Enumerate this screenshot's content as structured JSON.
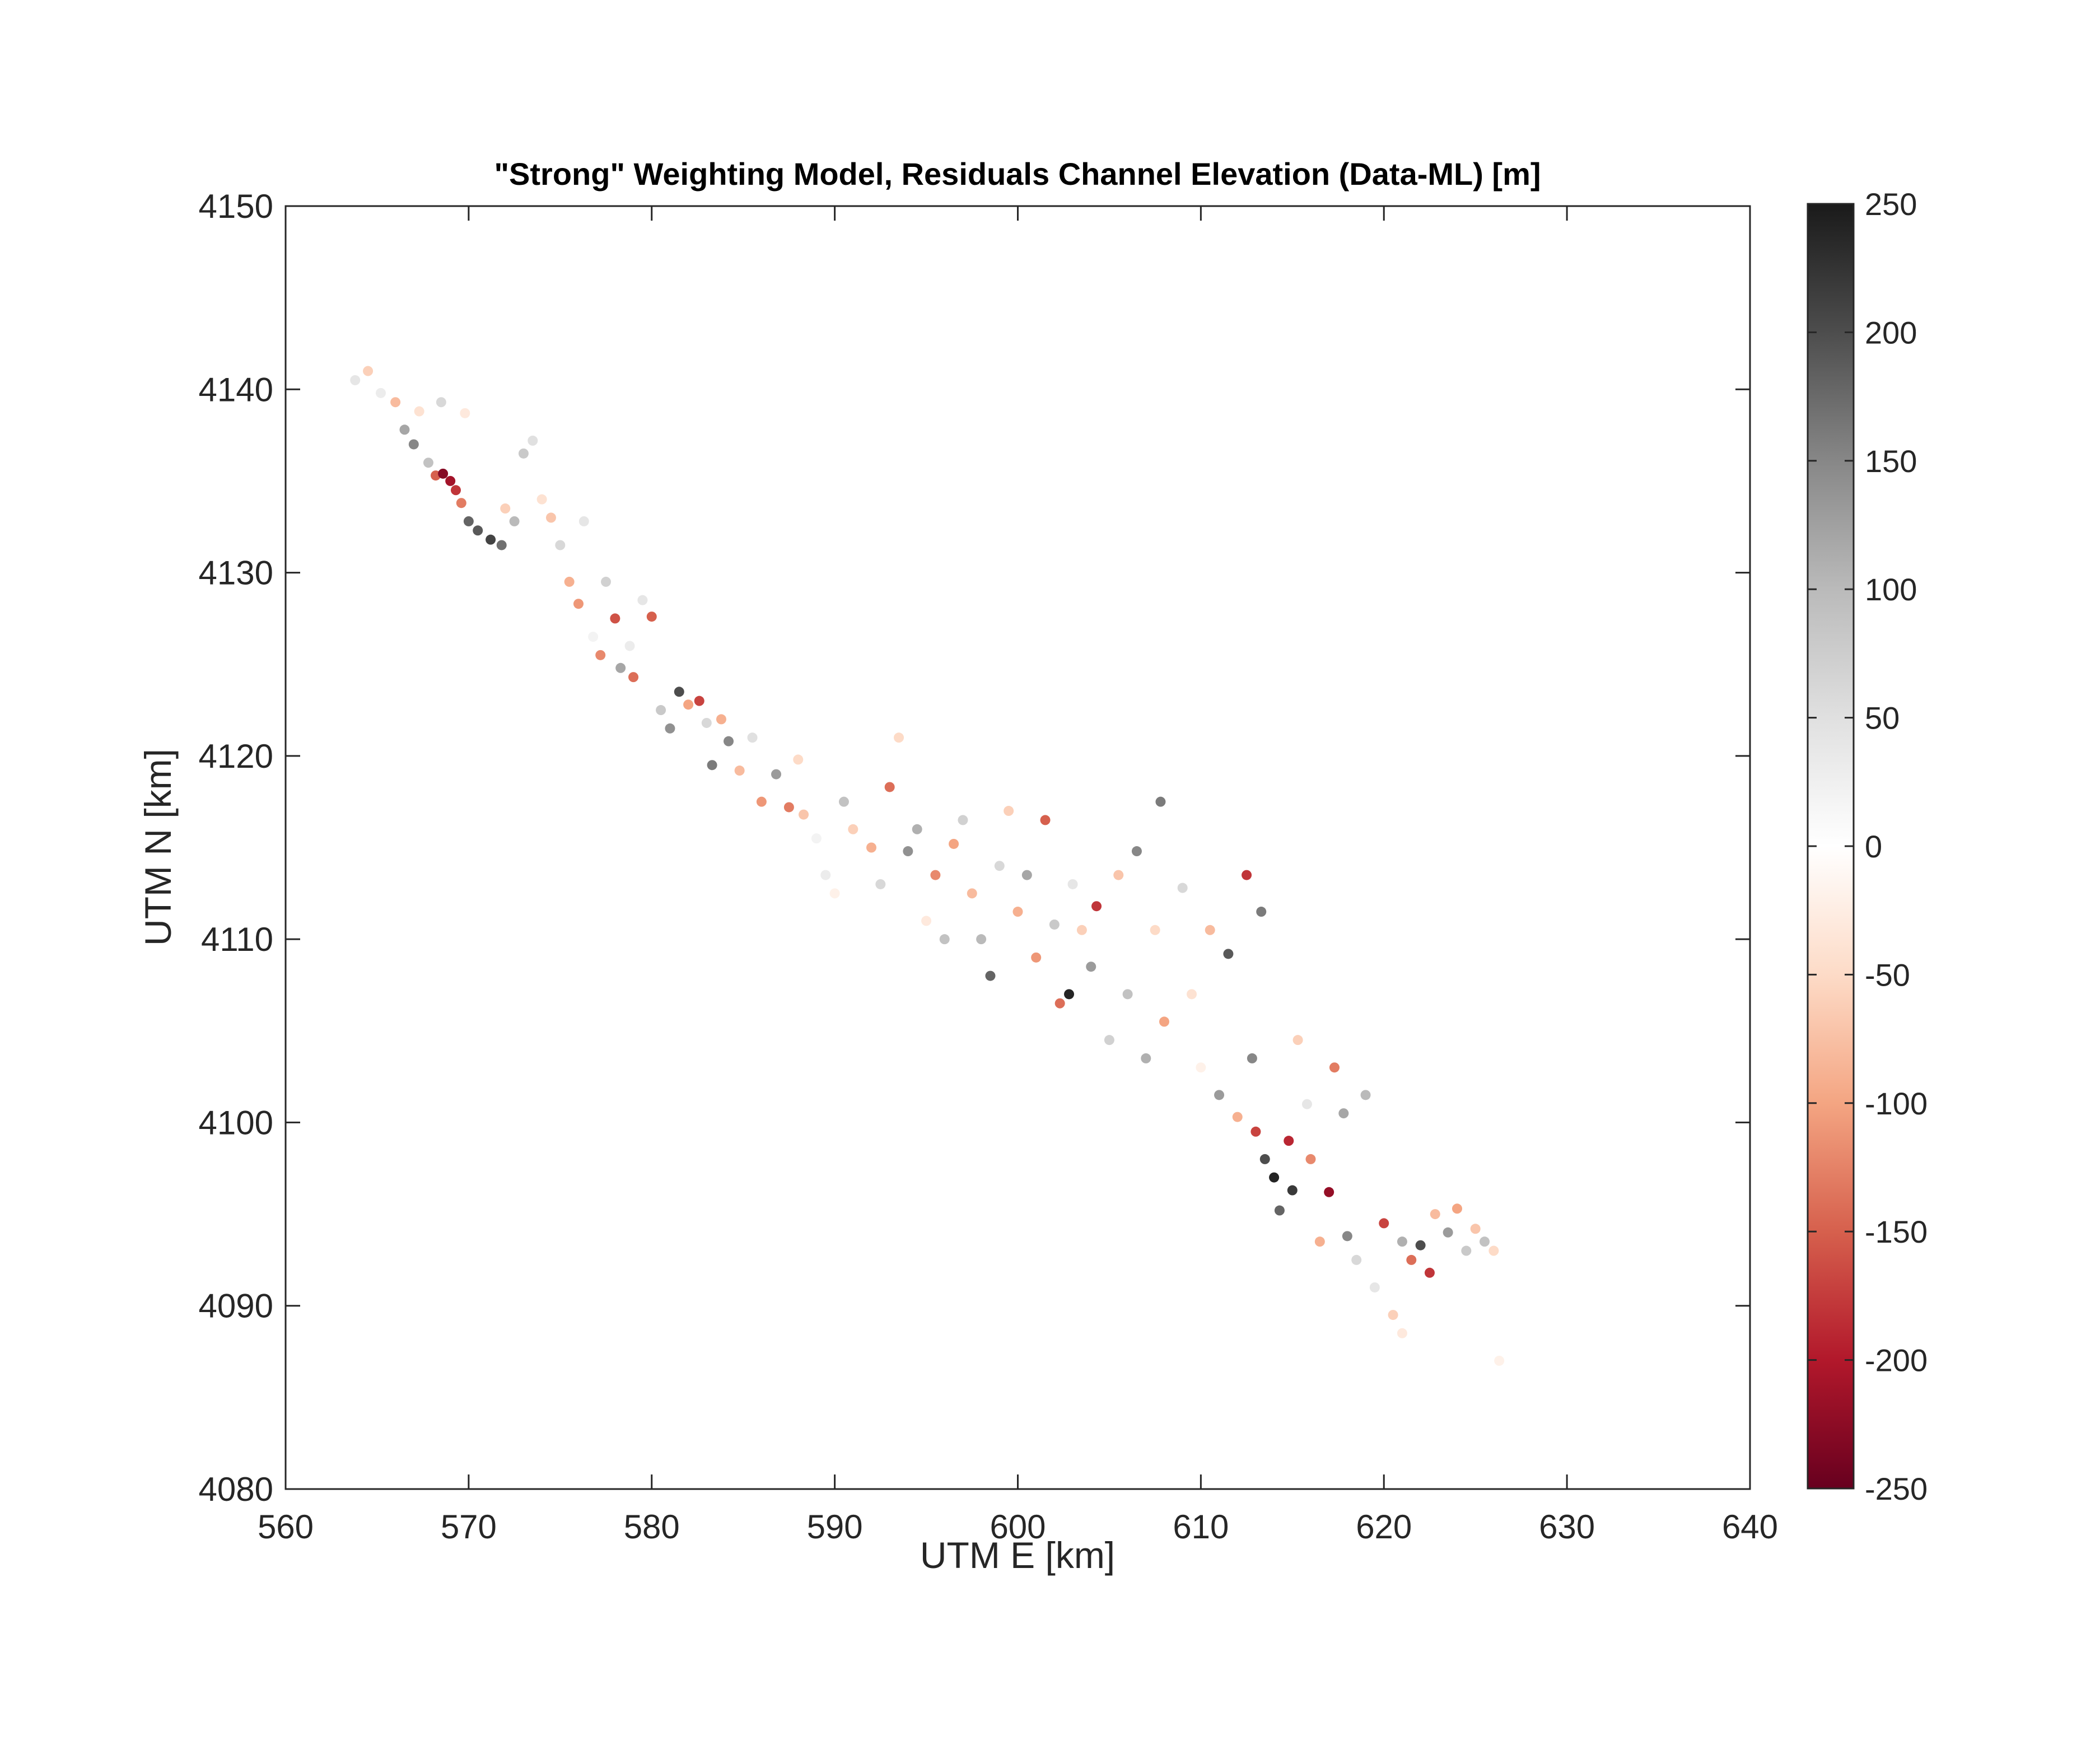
{
  "chart_data": {
    "type": "scatter",
    "title": "\"Strong\" Weighting Model, Residuals Channel Elevation (Data-ML) [m]",
    "xlabel": "UTM E [km]",
    "ylabel": "UTM N [km]",
    "xlim": [
      560,
      640
    ],
    "ylim": [
      4080,
      4150
    ],
    "xticks": [
      560,
      570,
      580,
      590,
      600,
      610,
      620,
      630,
      640
    ],
    "yticks": [
      4080,
      4090,
      4100,
      4110,
      4120,
      4130,
      4140,
      4150
    ],
    "grid": false,
    "colorbar": {
      "label": "",
      "clim": [
        -250,
        250
      ],
      "ticks": [
        250,
        200,
        150,
        100,
        50,
        0,
        -50,
        -100,
        -150,
        -200,
        -250
      ],
      "colormap": [
        {
          "value": -250,
          "color": "#67001f"
        },
        {
          "value": -200,
          "color": "#b2182b"
        },
        {
          "value": -150,
          "color": "#d6604d"
        },
        {
          "value": -100,
          "color": "#f4a582"
        },
        {
          "value": -50,
          "color": "#fddbc7"
        },
        {
          "value": 0,
          "color": "#ffffff"
        },
        {
          "value": 50,
          "color": "#e0e0e0"
        },
        {
          "value": 100,
          "color": "#bababa"
        },
        {
          "value": 150,
          "color": "#878787"
        },
        {
          "value": 200,
          "color": "#4d4d4d"
        },
        {
          "value": 250,
          "color": "#1a1a1a"
        }
      ]
    },
    "points": [
      {
        "x": 563.8,
        "y": 4140.5,
        "v": 40
      },
      {
        "x": 564.5,
        "y": 4141.0,
        "v": -60
      },
      {
        "x": 565.2,
        "y": 4139.8,
        "v": 30
      },
      {
        "x": 566.0,
        "y": 4139.3,
        "v": -80
      },
      {
        "x": 566.5,
        "y": 4137.8,
        "v": 120
      },
      {
        "x": 567.0,
        "y": 4137.0,
        "v": 150
      },
      {
        "x": 567.3,
        "y": 4138.8,
        "v": -40
      },
      {
        "x": 567.8,
        "y": 4136.0,
        "v": 90
      },
      {
        "x": 568.2,
        "y": 4135.3,
        "v": -150
      },
      {
        "x": 568.6,
        "y": 4135.4,
        "v": -230
      },
      {
        "x": 569.0,
        "y": 4135.0,
        "v": -210
      },
      {
        "x": 569.3,
        "y": 4134.5,
        "v": -180
      },
      {
        "x": 569.6,
        "y": 4133.8,
        "v": -130
      },
      {
        "x": 568.5,
        "y": 4139.3,
        "v": 60
      },
      {
        "x": 569.8,
        "y": 4138.7,
        "v": -30
      },
      {
        "x": 570.0,
        "y": 4132.8,
        "v": 180
      },
      {
        "x": 570.5,
        "y": 4132.3,
        "v": 190
      },
      {
        "x": 571.2,
        "y": 4131.8,
        "v": 210
      },
      {
        "x": 571.8,
        "y": 4131.5,
        "v": 170
      },
      {
        "x": 572.0,
        "y": 4133.5,
        "v": -60
      },
      {
        "x": 572.5,
        "y": 4132.8,
        "v": 100
      },
      {
        "x": 573.0,
        "y": 4136.5,
        "v": 80
      },
      {
        "x": 573.5,
        "y": 4137.2,
        "v": 50
      },
      {
        "x": 574.0,
        "y": 4134.0,
        "v": -40
      },
      {
        "x": 574.5,
        "y": 4133.0,
        "v": -70
      },
      {
        "x": 575.0,
        "y": 4131.5,
        "v": 60
      },
      {
        "x": 575.5,
        "y": 4129.5,
        "v": -90
      },
      {
        "x": 576.0,
        "y": 4128.3,
        "v": -110
      },
      {
        "x": 576.3,
        "y": 4132.8,
        "v": 40
      },
      {
        "x": 576.8,
        "y": 4126.5,
        "v": 20
      },
      {
        "x": 577.2,
        "y": 4125.5,
        "v": -120
      },
      {
        "x": 577.5,
        "y": 4129.5,
        "v": 70
      },
      {
        "x": 578.0,
        "y": 4127.5,
        "v": -160
      },
      {
        "x": 578.3,
        "y": 4124.8,
        "v": 120
      },
      {
        "x": 578.8,
        "y": 4126.0,
        "v": 30
      },
      {
        "x": 579.0,
        "y": 4124.3,
        "v": -140
      },
      {
        "x": 579.5,
        "y": 4128.5,
        "v": 40
      },
      {
        "x": 580.0,
        "y": 4127.6,
        "v": -150
      },
      {
        "x": 580.5,
        "y": 4122.5,
        "v": 80
      },
      {
        "x": 581.0,
        "y": 4121.5,
        "v": 140
      },
      {
        "x": 581.5,
        "y": 4123.5,
        "v": 200
      },
      {
        "x": 582.0,
        "y": 4122.8,
        "v": -100
      },
      {
        "x": 582.6,
        "y": 4123.0,
        "v": -170
      },
      {
        "x": 583.0,
        "y": 4121.8,
        "v": 60
      },
      {
        "x": 583.3,
        "y": 4119.5,
        "v": 160
      },
      {
        "x": 583.8,
        "y": 4122.0,
        "v": -90
      },
      {
        "x": 584.2,
        "y": 4120.8,
        "v": 150
      },
      {
        "x": 584.8,
        "y": 4119.2,
        "v": -80
      },
      {
        "x": 585.5,
        "y": 4121.0,
        "v": 50
      },
      {
        "x": 586.0,
        "y": 4117.5,
        "v": -110
      },
      {
        "x": 586.8,
        "y": 4119.0,
        "v": 130
      },
      {
        "x": 587.5,
        "y": 4117.2,
        "v": -130
      },
      {
        "x": 588.3,
        "y": 4116.8,
        "v": -70
      },
      {
        "x": 588.0,
        "y": 4119.8,
        "v": -50
      },
      {
        "x": 589.0,
        "y": 4115.5,
        "v": 20
      },
      {
        "x": 589.5,
        "y": 4113.5,
        "v": 30
      },
      {
        "x": 590.0,
        "y": 4112.5,
        "v": -20
      },
      {
        "x": 590.5,
        "y": 4117.5,
        "v": 90
      },
      {
        "x": 591.0,
        "y": 4116.0,
        "v": -60
      },
      {
        "x": 592.0,
        "y": 4115.0,
        "v": -90
      },
      {
        "x": 592.5,
        "y": 4113.0,
        "v": 60
      },
      {
        "x": 593.0,
        "y": 4118.3,
        "v": -140
      },
      {
        "x": 593.5,
        "y": 4121.0,
        "v": -50
      },
      {
        "x": 594.0,
        "y": 4114.8,
        "v": 140
      },
      {
        "x": 594.5,
        "y": 4116.0,
        "v": 110
      },
      {
        "x": 595.0,
        "y": 4111.0,
        "v": -30
      },
      {
        "x": 595.5,
        "y": 4113.5,
        "v": -120
      },
      {
        "x": 596.0,
        "y": 4110.0,
        "v": 90
      },
      {
        "x": 596.5,
        "y": 4115.2,
        "v": -100
      },
      {
        "x": 597.0,
        "y": 4116.5,
        "v": 70
      },
      {
        "x": 597.5,
        "y": 4112.5,
        "v": -80
      },
      {
        "x": 598.0,
        "y": 4110.0,
        "v": 100
      },
      {
        "x": 598.5,
        "y": 4108.0,
        "v": 180
      },
      {
        "x": 599.0,
        "y": 4114.0,
        "v": 60
      },
      {
        "x": 599.5,
        "y": 4117.0,
        "v": -60
      },
      {
        "x": 600.0,
        "y": 4111.5,
        "v": -90
      },
      {
        "x": 600.5,
        "y": 4113.5,
        "v": 120
      },
      {
        "x": 601.0,
        "y": 4109.0,
        "v": -110
      },
      {
        "x": 601.5,
        "y": 4116.5,
        "v": -150
      },
      {
        "x": 602.0,
        "y": 4110.8,
        "v": 80
      },
      {
        "x": 602.8,
        "y": 4107.0,
        "v": 240
      },
      {
        "x": 602.3,
        "y": 4106.5,
        "v": -140
      },
      {
        "x": 603.0,
        "y": 4113.0,
        "v": 40
      },
      {
        "x": 603.5,
        "y": 4110.5,
        "v": -60
      },
      {
        "x": 604.0,
        "y": 4108.5,
        "v": 130
      },
      {
        "x": 604.3,
        "y": 4111.8,
        "v": -180
      },
      {
        "x": 605.0,
        "y": 4104.5,
        "v": 70
      },
      {
        "x": 605.5,
        "y": 4113.5,
        "v": -70
      },
      {
        "x": 606.0,
        "y": 4107.0,
        "v": 90
      },
      {
        "x": 606.5,
        "y": 4114.8,
        "v": 150
      },
      {
        "x": 607.0,
        "y": 4103.5,
        "v": 110
      },
      {
        "x": 607.5,
        "y": 4110.5,
        "v": -50
      },
      {
        "x": 607.8,
        "y": 4117.5,
        "v": 160
      },
      {
        "x": 608.0,
        "y": 4105.5,
        "v": -100
      },
      {
        "x": 609.0,
        "y": 4112.8,
        "v": 60
      },
      {
        "x": 609.5,
        "y": 4107.0,
        "v": -40
      },
      {
        "x": 610.0,
        "y": 4103.0,
        "v": -20
      },
      {
        "x": 610.5,
        "y": 4110.5,
        "v": -80
      },
      {
        "x": 611.0,
        "y": 4101.5,
        "v": 130
      },
      {
        "x": 611.5,
        "y": 4109.2,
        "v": 190
      },
      {
        "x": 612.0,
        "y": 4100.3,
        "v": -90
      },
      {
        "x": 612.5,
        "y": 4113.5,
        "v": -180
      },
      {
        "x": 612.8,
        "y": 4103.5,
        "v": 150
      },
      {
        "x": 613.0,
        "y": 4099.5,
        "v": -170
      },
      {
        "x": 613.3,
        "y": 4111.5,
        "v": 160
      },
      {
        "x": 613.5,
        "y": 4098.0,
        "v": 200
      },
      {
        "x": 614.0,
        "y": 4097.0,
        "v": 240
      },
      {
        "x": 614.3,
        "y": 4095.2,
        "v": 180
      },
      {
        "x": 614.8,
        "y": 4099.0,
        "v": -190
      },
      {
        "x": 615.0,
        "y": 4096.3,
        "v": 220
      },
      {
        "x": 615.3,
        "y": 4104.5,
        "v": -60
      },
      {
        "x": 615.8,
        "y": 4101.0,
        "v": 40
      },
      {
        "x": 616.0,
        "y": 4098.0,
        "v": -120
      },
      {
        "x": 616.5,
        "y": 4093.5,
        "v": -90
      },
      {
        "x": 617.0,
        "y": 4096.2,
        "v": -220
      },
      {
        "x": 617.3,
        "y": 4103.0,
        "v": -130
      },
      {
        "x": 617.8,
        "y": 4100.5,
        "v": 120
      },
      {
        "x": 618.0,
        "y": 4093.8,
        "v": 150
      },
      {
        "x": 618.5,
        "y": 4092.5,
        "v": 60
      },
      {
        "x": 619.0,
        "y": 4101.5,
        "v": 100
      },
      {
        "x": 619.5,
        "y": 4091.0,
        "v": 40
      },
      {
        "x": 620.0,
        "y": 4094.5,
        "v": -170
      },
      {
        "x": 620.5,
        "y": 4089.5,
        "v": -60
      },
      {
        "x": 621.0,
        "y": 4093.5,
        "v": 110
      },
      {
        "x": 621.5,
        "y": 4092.5,
        "v": -140
      },
      {
        "x": 622.0,
        "y": 4093.3,
        "v": 200
      },
      {
        "x": 622.5,
        "y": 4091.8,
        "v": -180
      },
      {
        "x": 622.8,
        "y": 4095.0,
        "v": -80
      },
      {
        "x": 623.5,
        "y": 4094.0,
        "v": 130
      },
      {
        "x": 624.0,
        "y": 4095.3,
        "v": -100
      },
      {
        "x": 624.5,
        "y": 4093.0,
        "v": 80
      },
      {
        "x": 625.0,
        "y": 4094.2,
        "v": -70
      },
      {
        "x": 625.5,
        "y": 4093.5,
        "v": 90
      },
      {
        "x": 626.0,
        "y": 4093.0,
        "v": -50
      },
      {
        "x": 621.0,
        "y": 4088.5,
        "v": -30
      },
      {
        "x": 626.3,
        "y": 4087.0,
        "v": -20
      }
    ]
  }
}
